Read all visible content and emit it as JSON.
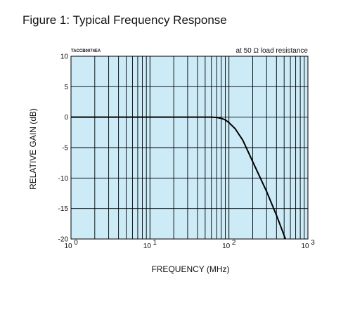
{
  "figure_title": "Figure 1: Typical Frequency Response",
  "chart_data": {
    "type": "line",
    "code_label": "TACCB0074EA",
    "annotation": "at 50 Ω load resistance",
    "xlabel": "FREQUENCY (MHz)",
    "ylabel": "RELATIVE GAIN (dB)",
    "x_scale": "log",
    "xlim": [
      1,
      1000
    ],
    "ylim": [
      -20,
      10
    ],
    "x_ticks": [
      1,
      10,
      100,
      1000
    ],
    "x_tick_bases": [
      "10",
      "10",
      "10",
      "10"
    ],
    "x_tick_exponents": [
      "0",
      "1",
      "2",
      "3"
    ],
    "y_ticks": [
      10,
      5,
      0,
      -5,
      -10,
      -15,
      -20
    ],
    "y_tick_labels": [
      "10",
      "5",
      "0",
      "-5",
      "-10",
      "-15",
      "-20"
    ],
    "grid": true,
    "plot_background": "#ccebf7",
    "grid_color": "#000000",
    "line_color": "#000000",
    "series": [
      {
        "x": [
          1,
          5,
          10,
          30,
          50,
          60,
          70,
          80,
          90,
          100,
          120,
          150,
          200,
          300,
          400,
          520
        ],
        "y": [
          0,
          0,
          0,
          0,
          0,
          0,
          -0.05,
          -0.2,
          -0.45,
          -0.9,
          -1.9,
          -3.8,
          -7.3,
          -12.2,
          -16.1,
          -20
        ]
      }
    ]
  }
}
